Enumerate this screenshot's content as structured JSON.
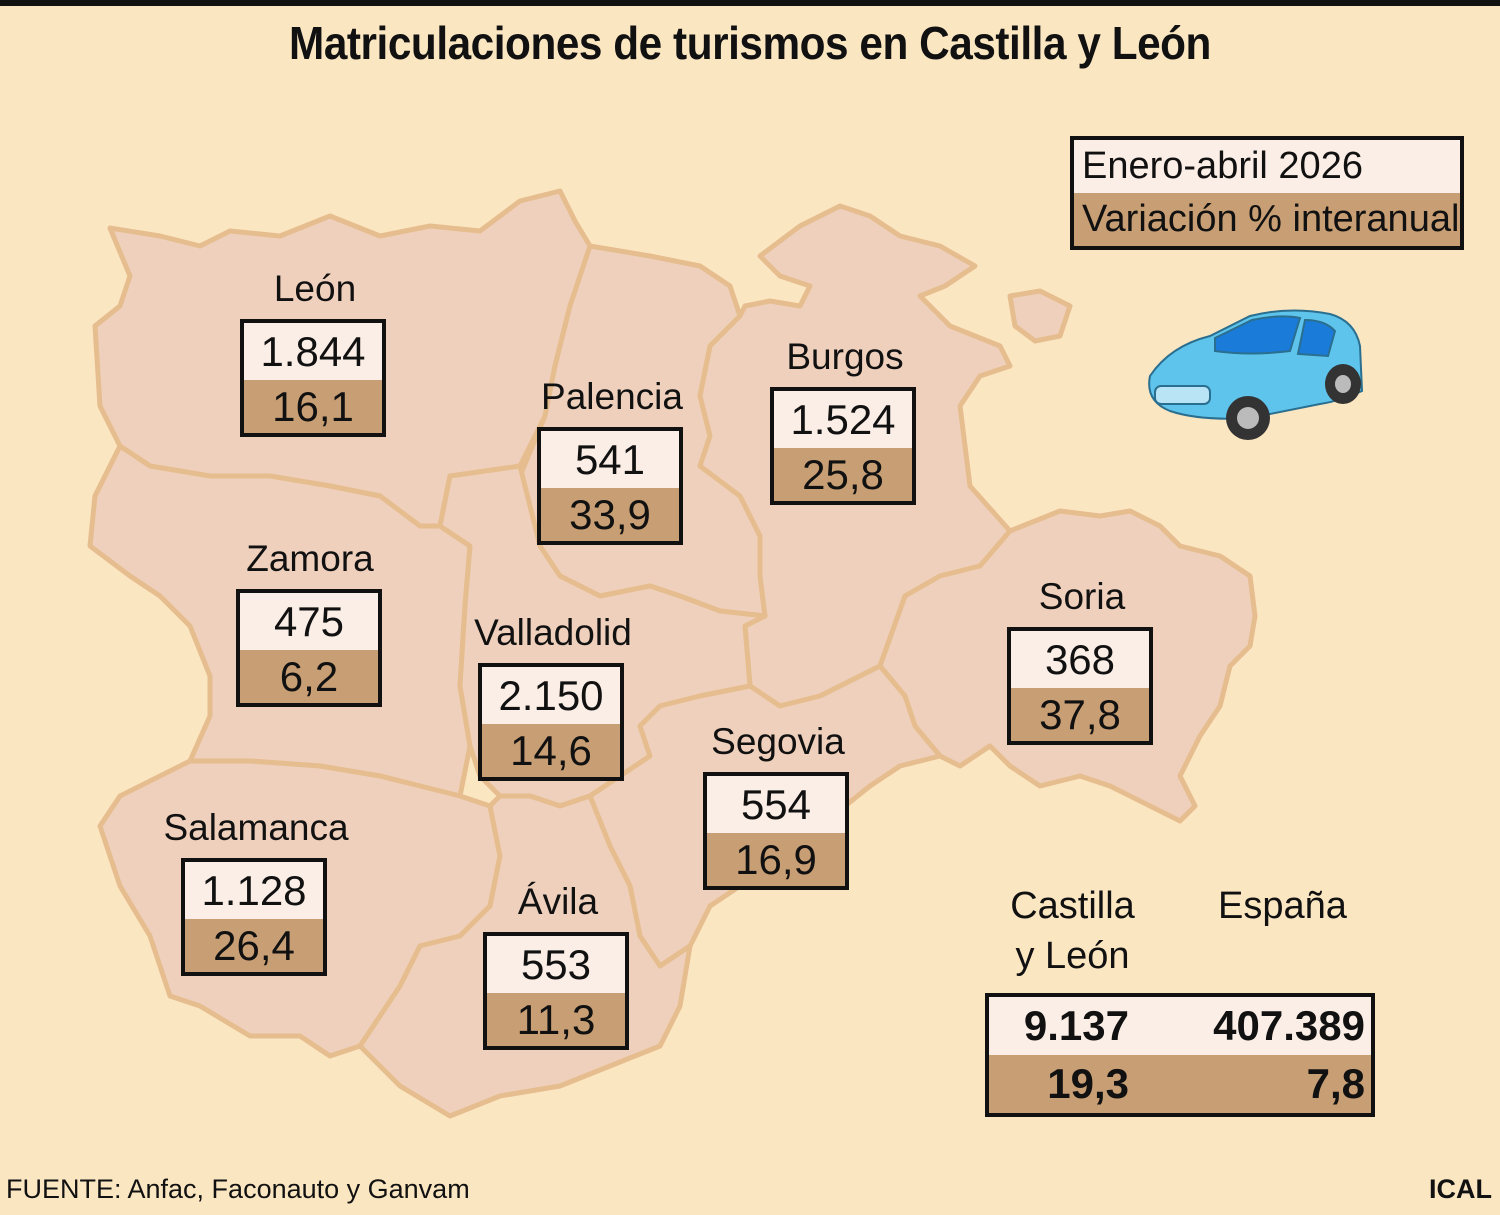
{
  "title": "Matriculaciones de turismos en Castilla y León",
  "legend": {
    "period": "Enero-abril 2026",
    "variation": "Variación % interanual"
  },
  "provinces": [
    {
      "name": "León",
      "registrations": "1.844",
      "variation": "16,1"
    },
    {
      "name": "Palencia",
      "registrations": "541",
      "variation": "33,9"
    },
    {
      "name": "Burgos",
      "registrations": "1.524",
      "variation": "25,8"
    },
    {
      "name": "Zamora",
      "registrations": "475",
      "variation": "6,2"
    },
    {
      "name": "Valladolid",
      "registrations": "2.150",
      "variation": "14,6"
    },
    {
      "name": "Soria",
      "registrations": "368",
      "variation": "37,8"
    },
    {
      "name": "Segovia",
      "registrations": "554",
      "variation": "16,9"
    },
    {
      "name": "Salamanca",
      "registrations": "1.128",
      "variation": "26,4"
    },
    {
      "name": "Ávila",
      "registrations": "553",
      "variation": "11,3"
    }
  ],
  "totals": {
    "cyl_label_line1": "Castilla",
    "cyl_label_line2": "y León",
    "spain_label": "España",
    "cyl_registrations": "9.137",
    "spain_registrations": "407.389",
    "cyl_variation": "19,3",
    "spain_variation": "7,8"
  },
  "source": "FUENTE: Anfac, Faconauto y Ganvam",
  "credit": "ICAL",
  "colors": {
    "background": "#fbe6c2",
    "province_fill": "#efd0bc",
    "province_border": "#e6bd8e",
    "box_top": "#fbeee6",
    "box_bottom": "#c89e74",
    "car": "#5fc4ec"
  }
}
